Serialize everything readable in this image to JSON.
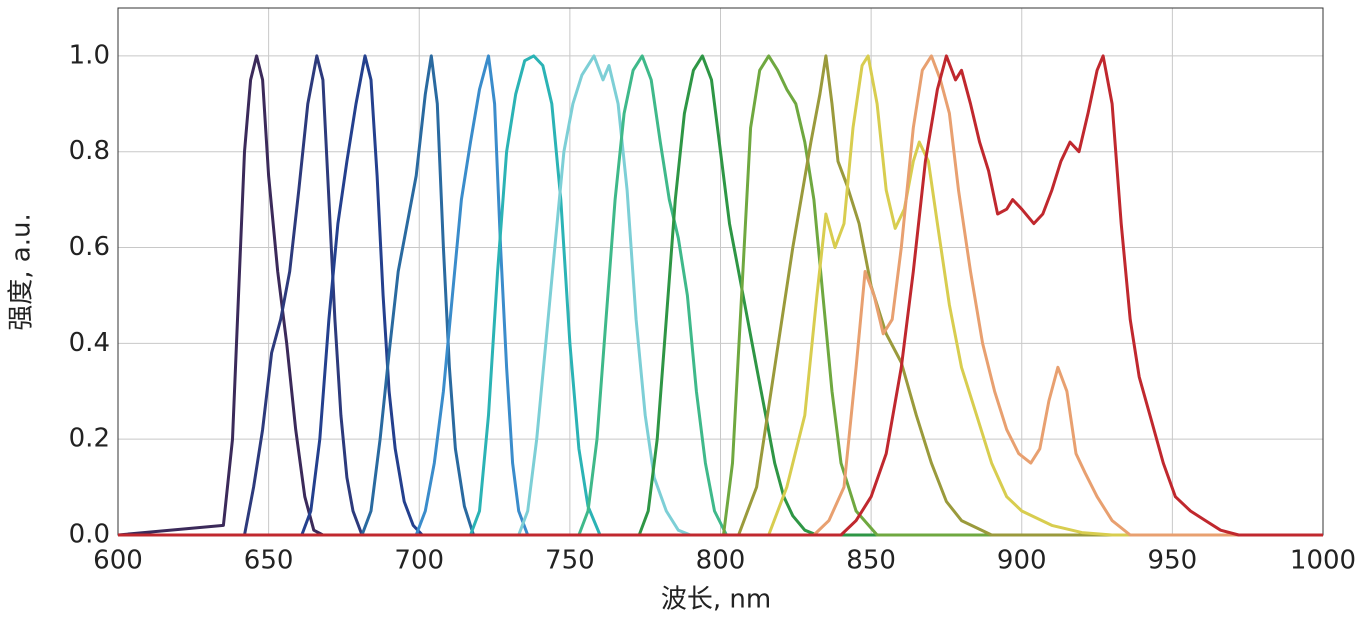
{
  "chart_data": {
    "type": "line",
    "x_label": "波长, nm",
    "y_label": "强度, a.u.",
    "xlim": [
      600,
      1000
    ],
    "ylim": [
      0,
      1.1
    ],
    "xticks": [
      600,
      650,
      700,
      750,
      800,
      850,
      900,
      950,
      1000
    ],
    "yticks": [
      {
        "value": 0,
        "label": "0.0"
      },
      0.2,
      0.4,
      0.6,
      0.8,
      {
        "value": 1,
        "label": "1.0"
      }
    ],
    "grid": true,
    "series": [
      {
        "color": "#3b2a5a",
        "x": [
          600,
          635,
          638,
          640,
          642,
          644,
          646,
          648,
          650,
          653,
          656,
          659,
          662,
          665,
          668,
          1000
        ],
        "values": [
          0,
          0.02,
          0.2,
          0.5,
          0.8,
          0.95,
          1.0,
          0.95,
          0.75,
          0.55,
          0.4,
          0.22,
          0.08,
          0.01,
          0,
          0
        ]
      },
      {
        "color": "#2d3a7c",
        "x": [
          600,
          642,
          645,
          648,
          651,
          654,
          657,
          660,
          663,
          666,
          668,
          670,
          672,
          674,
          676,
          678,
          681,
          1000
        ],
        "values": [
          0,
          0,
          0.1,
          0.22,
          0.38,
          0.45,
          0.55,
          0.72,
          0.9,
          1.0,
          0.95,
          0.7,
          0.45,
          0.25,
          0.12,
          0.05,
          0,
          0
        ]
      },
      {
        "color": "#24408e",
        "x": [
          600,
          661,
          664,
          667,
          670,
          673,
          676,
          679,
          682,
          684,
          686,
          688,
          690,
          692,
          695,
          698,
          701,
          1000
        ],
        "values": [
          0,
          0,
          0.05,
          0.2,
          0.45,
          0.65,
          0.78,
          0.9,
          1.0,
          0.95,
          0.75,
          0.5,
          0.3,
          0.18,
          0.07,
          0.02,
          0,
          0
        ]
      },
      {
        "color": "#2a6aa0",
        "x": [
          600,
          681,
          684,
          687,
          690,
          693,
          696,
          699,
          702,
          704,
          706,
          708,
          710,
          712,
          715,
          718,
          1000
        ],
        "values": [
          0,
          0,
          0.05,
          0.2,
          0.38,
          0.55,
          0.65,
          0.75,
          0.92,
          1.0,
          0.9,
          0.6,
          0.35,
          0.18,
          0.06,
          0,
          0
        ]
      },
      {
        "color": "#3a8ccb",
        "x": [
          600,
          699,
          702,
          705,
          708,
          711,
          714,
          717,
          720,
          723,
          725,
          727,
          729,
          731,
          733,
          736,
          1000
        ],
        "values": [
          0,
          0,
          0.05,
          0.15,
          0.3,
          0.5,
          0.7,
          0.82,
          0.93,
          1.0,
          0.9,
          0.6,
          0.35,
          0.15,
          0.05,
          0,
          0
        ]
      },
      {
        "color": "#2bb3b5",
        "x": [
          600,
          717,
          720,
          723,
          726,
          729,
          732,
          735,
          738,
          741,
          744,
          747,
          750,
          753,
          756,
          760,
          1000
        ],
        "values": [
          0,
          0,
          0.05,
          0.25,
          0.55,
          0.8,
          0.92,
          0.99,
          1.0,
          0.98,
          0.9,
          0.7,
          0.4,
          0.18,
          0.06,
          0,
          0
        ]
      },
      {
        "color": "#7dcfd6",
        "x": [
          600,
          733,
          736,
          739,
          742,
          745,
          748,
          751,
          754,
          758,
          761,
          763,
          766,
          769,
          772,
          775,
          778,
          782,
          786,
          790,
          1000
        ],
        "values": [
          0,
          0,
          0.05,
          0.2,
          0.4,
          0.6,
          0.8,
          0.9,
          0.96,
          1.0,
          0.95,
          0.98,
          0.9,
          0.72,
          0.45,
          0.25,
          0.12,
          0.05,
          0.01,
          0,
          0
        ]
      },
      {
        "color": "#3fb98a",
        "x": [
          600,
          753,
          756,
          759,
          762,
          765,
          768,
          771,
          774,
          777,
          780,
          783,
          786,
          789,
          792,
          795,
          798,
          802,
          1000
        ],
        "values": [
          0,
          0,
          0.05,
          0.2,
          0.45,
          0.7,
          0.88,
          0.97,
          1.0,
          0.95,
          0.82,
          0.7,
          0.62,
          0.5,
          0.3,
          0.15,
          0.05,
          0,
          0
        ]
      },
      {
        "color": "#2e9645",
        "x": [
          600,
          773,
          776,
          779,
          782,
          785,
          788,
          791,
          794,
          797,
          800,
          803,
          806,
          809,
          812,
          815,
          818,
          821,
          824,
          828,
          832,
          1000
        ],
        "values": [
          0,
          0,
          0.05,
          0.2,
          0.45,
          0.7,
          0.88,
          0.97,
          1.0,
          0.95,
          0.8,
          0.65,
          0.55,
          0.45,
          0.35,
          0.25,
          0.15,
          0.08,
          0.04,
          0.01,
          0,
          0
        ]
      },
      {
        "color": "#6fa840",
        "x": [
          600,
          801,
          804,
          807,
          810,
          813,
          816,
          819,
          822,
          825,
          828,
          831,
          834,
          837,
          840,
          845,
          852,
          1000
        ],
        "values": [
          0,
          0,
          0.15,
          0.5,
          0.85,
          0.97,
          1.0,
          0.97,
          0.93,
          0.9,
          0.82,
          0.7,
          0.5,
          0.3,
          0.15,
          0.05,
          0,
          0
        ]
      },
      {
        "color": "#9a9a3c",
        "x": [
          600,
          806,
          812,
          818,
          824,
          830,
          833,
          835,
          837,
          839,
          842,
          846,
          850,
          855,
          860,
          865,
          870,
          875,
          880,
          890,
          1000
        ],
        "values": [
          0,
          0,
          0.1,
          0.35,
          0.6,
          0.82,
          0.92,
          1.0,
          0.9,
          0.78,
          0.73,
          0.65,
          0.52,
          0.42,
          0.36,
          0.25,
          0.15,
          0.07,
          0.03,
          0,
          0
        ]
      },
      {
        "color": "#d8cd4f",
        "x": [
          600,
          816,
          822,
          828,
          832,
          835,
          838,
          841,
          844,
          847,
          849,
          852,
          855,
          858,
          861,
          864,
          866,
          869,
          872,
          876,
          880,
          885,
          890,
          895,
          900,
          910,
          920,
          930,
          1000
        ],
        "values": [
          0,
          0,
          0.1,
          0.25,
          0.5,
          0.67,
          0.6,
          0.65,
          0.85,
          0.98,
          1.0,
          0.9,
          0.72,
          0.64,
          0.68,
          0.78,
          0.82,
          0.78,
          0.65,
          0.48,
          0.35,
          0.25,
          0.15,
          0.08,
          0.05,
          0.02,
          0.005,
          0,
          0
        ]
      },
      {
        "color": "#e8a070",
        "x": [
          600,
          831,
          836,
          841,
          845,
          848,
          851,
          854,
          857,
          860,
          864,
          867,
          870,
          873,
          876,
          879,
          883,
          887,
          891,
          895,
          899,
          903,
          906,
          909,
          912,
          915,
          918,
          921,
          925,
          930,
          936,
          1000
        ],
        "values": [
          0,
          0,
          0.03,
          0.1,
          0.35,
          0.55,
          0.5,
          0.42,
          0.45,
          0.6,
          0.85,
          0.97,
          1.0,
          0.95,
          0.88,
          0.72,
          0.55,
          0.4,
          0.3,
          0.22,
          0.17,
          0.15,
          0.18,
          0.28,
          0.35,
          0.3,
          0.17,
          0.13,
          0.08,
          0.03,
          0,
          0
        ]
      },
      {
        "color": "#c0282e",
        "x": [
          600,
          840,
          845,
          850,
          855,
          860,
          864,
          868,
          872,
          875,
          878,
          880,
          883,
          886,
          889,
          892,
          895,
          897,
          900,
          904,
          907,
          910,
          913,
          916,
          919,
          922,
          925,
          927,
          930,
          933,
          936,
          939,
          943,
          947,
          951,
          956,
          961,
          966,
          972,
          1000
        ],
        "values": [
          0,
          0,
          0.03,
          0.08,
          0.17,
          0.35,
          0.55,
          0.78,
          0.93,
          1.0,
          0.95,
          0.97,
          0.9,
          0.82,
          0.76,
          0.67,
          0.68,
          0.7,
          0.68,
          0.65,
          0.67,
          0.72,
          0.78,
          0.82,
          0.8,
          0.88,
          0.97,
          1.0,
          0.9,
          0.65,
          0.45,
          0.33,
          0.24,
          0.15,
          0.08,
          0.05,
          0.03,
          0.01,
          0,
          0
        ]
      }
    ]
  }
}
